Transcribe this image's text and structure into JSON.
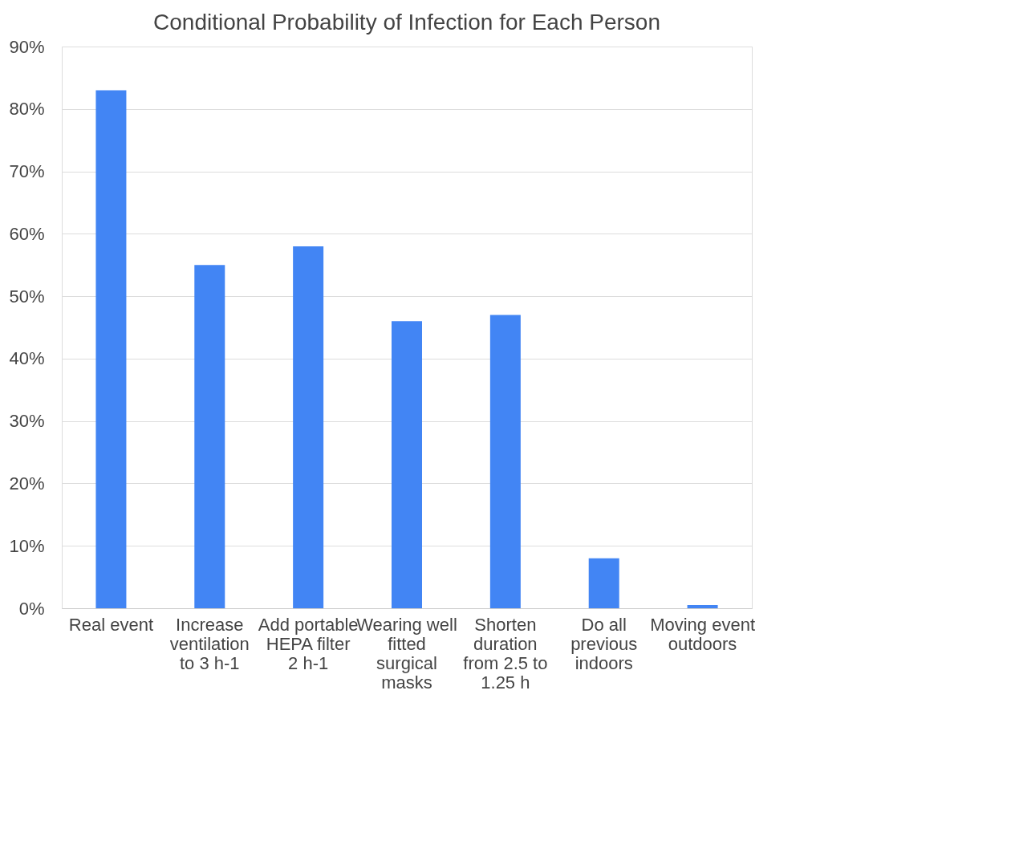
{
  "chart_data": {
    "type": "bar",
    "title": "Conditional Probability of Infection for Each Person",
    "categories": [
      "Real event",
      "Increase ventilation to 3 h-1",
      "Add portable HEPA filter 2 h-1",
      "Wearing well fitted surgical masks",
      "Shorten duration from 2.5 to 1.25 h",
      "Do all previous indoors",
      "Moving event outdoors"
    ],
    "values": [
      83,
      55,
      58,
      46,
      47,
      8,
      0.5
    ],
    "color": "#4285f4",
    "ylim": [
      0,
      90
    ],
    "yticks": [
      {
        "value": 0,
        "label": "0%"
      },
      {
        "value": 10,
        "label": "10%"
      },
      {
        "value": 20,
        "label": "20%"
      },
      {
        "value": 30,
        "label": "30%"
      },
      {
        "value": 40,
        "label": "40%"
      },
      {
        "value": 50,
        "label": "50%"
      },
      {
        "value": 60,
        "label": "60%"
      },
      {
        "value": 70,
        "label": "70%"
      },
      {
        "value": 80,
        "label": "80%"
      },
      {
        "value": 90,
        "label": "90%"
      }
    ],
    "grid": "y"
  }
}
